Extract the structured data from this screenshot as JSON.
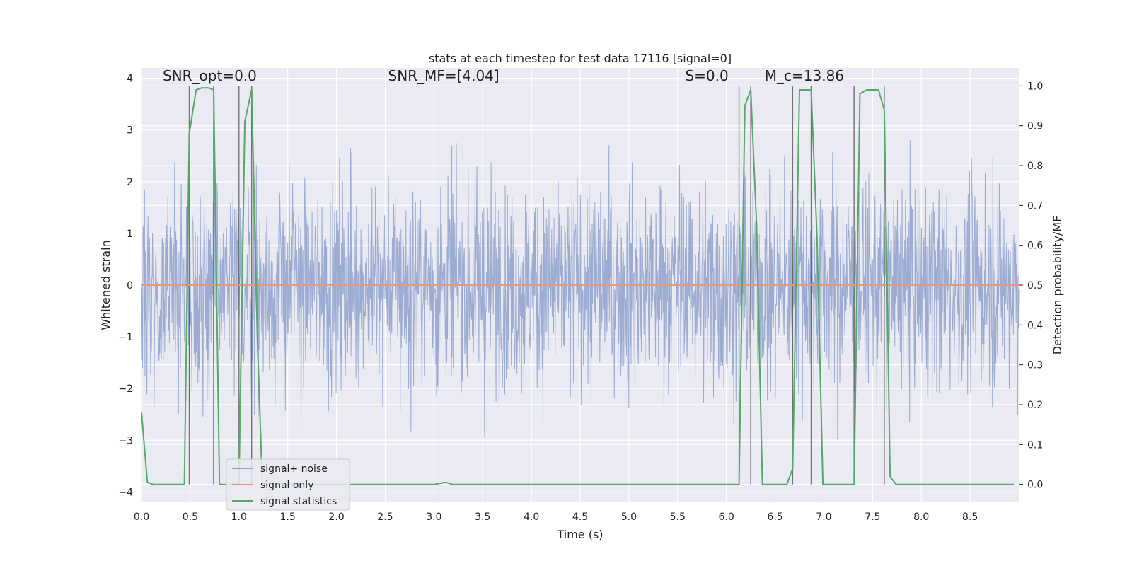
{
  "chart_data": {
    "type": "line",
    "title": "stats at each timestep for test data 17116 [signal=0]",
    "xlabel": "Time (s)",
    "ylabel": "Whitened strain",
    "y2label": "Detection probability/MF",
    "xlim": [
      0,
      9.0
    ],
    "ylim": [
      -4.2,
      4.2
    ],
    "y2lim": [
      -0.045,
      1.045
    ],
    "x_ticks": [
      0,
      0.5,
      1.0,
      1.5,
      2.0,
      2.5,
      3.0,
      3.5,
      4.0,
      4.5,
      5.0,
      5.5,
      6.0,
      6.5,
      7.0,
      7.5,
      8.0,
      8.5
    ],
    "x_tick_labels": [
      "0.0",
      "0.5",
      "1.0",
      "1.5",
      "2.0",
      "2.5",
      "3.0",
      "3.5",
      "4.0",
      "4.5",
      "5.0",
      "5.5",
      "6.0",
      "6.5",
      "7.0",
      "7.5",
      "8.0",
      "8.5"
    ],
    "y_ticks": [
      -4,
      -3,
      -2,
      -1,
      0,
      1,
      2,
      3,
      4
    ],
    "y_tick_labels": [
      "−4",
      "−3",
      "−2",
      "−1",
      "0",
      "1",
      "2",
      "3",
      "4"
    ],
    "y2_ticks": [
      0.0,
      0.1,
      0.2,
      0.3,
      0.4,
      0.5,
      0.6,
      0.7,
      0.8,
      0.9,
      1.0
    ],
    "y2_tick_labels": [
      "0.0",
      "0.1",
      "0.2",
      "0.3",
      "0.4",
      "0.5",
      "0.6",
      "0.7",
      "0.8",
      "0.9",
      "1.0"
    ],
    "grid": true,
    "legend_position": "lower-left",
    "annotations": [
      {
        "text": "SNR_opt=0.0",
        "x": 0.7,
        "y": 4.05
      },
      {
        "text": "SNR_MF=[4.04]",
        "x": 3.1,
        "y": 4.05
      },
      {
        "text": "S=0.0",
        "x": 5.8,
        "y": 4.05
      },
      {
        "text": "M_c=13.86",
        "x": 6.8,
        "y": 4.05
      }
    ],
    "vertical_lines": [
      0.49,
      0.74,
      1.0,
      1.13,
      6.13,
      6.25,
      6.68,
      6.87,
      7.31,
      7.62
    ],
    "series": [
      {
        "name": "signal+ noise",
        "color": "#8da0cb",
        "axis": "left",
        "kind": "noise",
        "amplitude_sigma": 1.0,
        "n_points": 2300
      },
      {
        "name": "signal only",
        "color": "#e8987a",
        "axis": "left",
        "x": [
          0,
          9.0
        ],
        "y": [
          0,
          0
        ]
      },
      {
        "name": "signal statistics",
        "color": "#55a868",
        "axis": "right",
        "x": [
          0.0,
          0.06,
          0.12,
          0.44,
          0.49,
          0.56,
          0.62,
          0.69,
          0.74,
          0.8,
          0.93,
          1.0,
          1.06,
          1.13,
          1.19,
          1.24,
          1.3,
          3.0,
          3.12,
          3.19,
          6.13,
          6.19,
          6.25,
          6.31,
          6.37,
          6.62,
          6.68,
          6.75,
          6.81,
          6.87,
          6.93,
          6.99,
          7.06,
          7.25,
          7.31,
          7.37,
          7.44,
          7.56,
          7.62,
          7.68,
          7.74,
          8.95
        ],
        "y": [
          0.18,
          0.005,
          0.0,
          0.0,
          0.88,
          0.99,
          0.995,
          0.995,
          0.99,
          0.0,
          0.0,
          0.005,
          0.91,
          0.99,
          0.35,
          0.0,
          0.0,
          0.0,
          0.005,
          0.0,
          0.0,
          0.95,
          0.99,
          0.65,
          0.0,
          0.0,
          0.04,
          0.99,
          0.99,
          0.99,
          0.62,
          0.0,
          0.0,
          0.0,
          0.0,
          0.98,
          0.99,
          0.99,
          0.94,
          0.02,
          0.0,
          0.0
        ]
      }
    ],
    "legend": [
      {
        "label": "signal+ noise",
        "color": "#8da0cb"
      },
      {
        "label": "signal only",
        "color": "#e8987a"
      },
      {
        "label": "signal statistics",
        "color": "#55a868"
      }
    ]
  }
}
